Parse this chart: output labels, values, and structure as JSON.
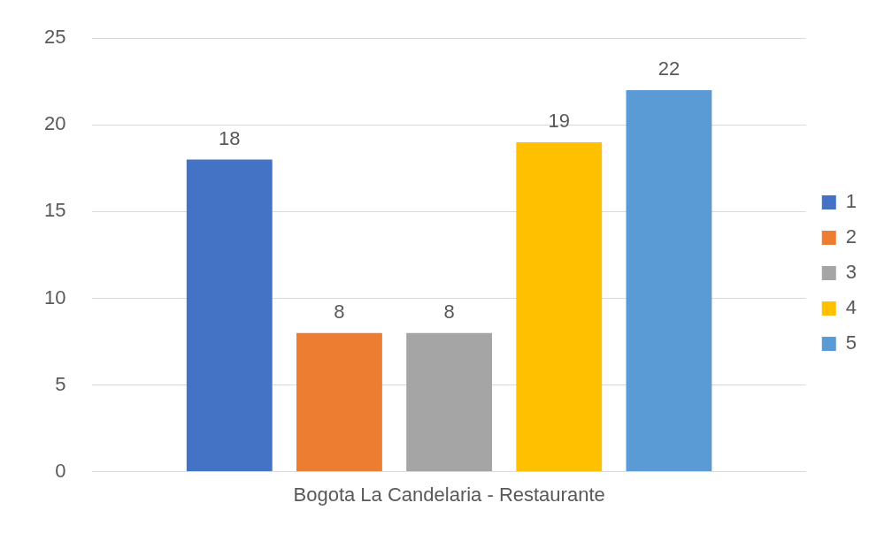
{
  "chart_data": {
    "type": "bar",
    "categories": [
      "Bogota La Candelaria - Restaurante"
    ],
    "series": [
      {
        "name": "1",
        "color": "#4472c4",
        "values": [
          18
        ]
      },
      {
        "name": "2",
        "color": "#ed7d31",
        "values": [
          8
        ]
      },
      {
        "name": "3",
        "color": "#a5a5a5",
        "values": [
          8
        ]
      },
      {
        "name": "4",
        "color": "#ffc000",
        "values": [
          19
        ]
      },
      {
        "name": "5",
        "color": "#5b9bd5",
        "values": [
          22
        ]
      }
    ],
    "ylim": [
      0,
      25
    ],
    "yticks": [
      0,
      5,
      10,
      15,
      20,
      25
    ],
    "grid": "y",
    "legend": "right",
    "data_labels": true
  }
}
